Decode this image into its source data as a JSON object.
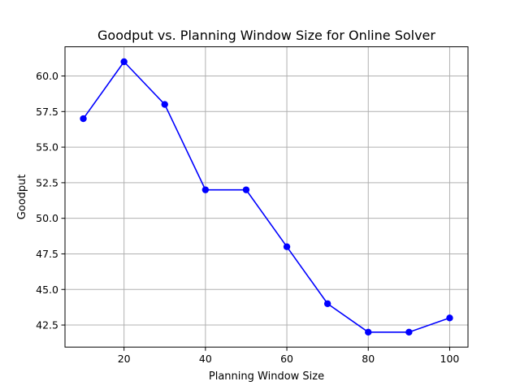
{
  "chart_data": {
    "type": "line",
    "title": "Goodput vs. Planning Window Size for Online Solver",
    "xlabel": "Planning Window Size",
    "ylabel": "Goodput",
    "x": [
      10,
      20,
      30,
      40,
      50,
      60,
      70,
      80,
      90,
      100
    ],
    "series": [
      {
        "values": [
          57.0,
          61.0,
          58.0,
          52.0,
          52.0,
          48.0,
          44.0,
          42.0,
          42.0,
          43.0
        ],
        "color": "#0000ff",
        "marker": "circle"
      }
    ],
    "xlim": [
      5.5,
      104.5
    ],
    "ylim": [
      40.95,
      62.05
    ],
    "xticks": [
      20,
      40,
      60,
      80,
      100
    ],
    "xtick_labels": [
      "20",
      "40",
      "60",
      "80",
      "100"
    ],
    "yticks": [
      42.5,
      45.0,
      47.5,
      50.0,
      52.5,
      55.0,
      57.5,
      60.0
    ],
    "ytick_labels": [
      "42.5",
      "45.0",
      "47.5",
      "50.0",
      "52.5",
      "55.0",
      "57.5",
      "60.0"
    ],
    "grid": true
  }
}
